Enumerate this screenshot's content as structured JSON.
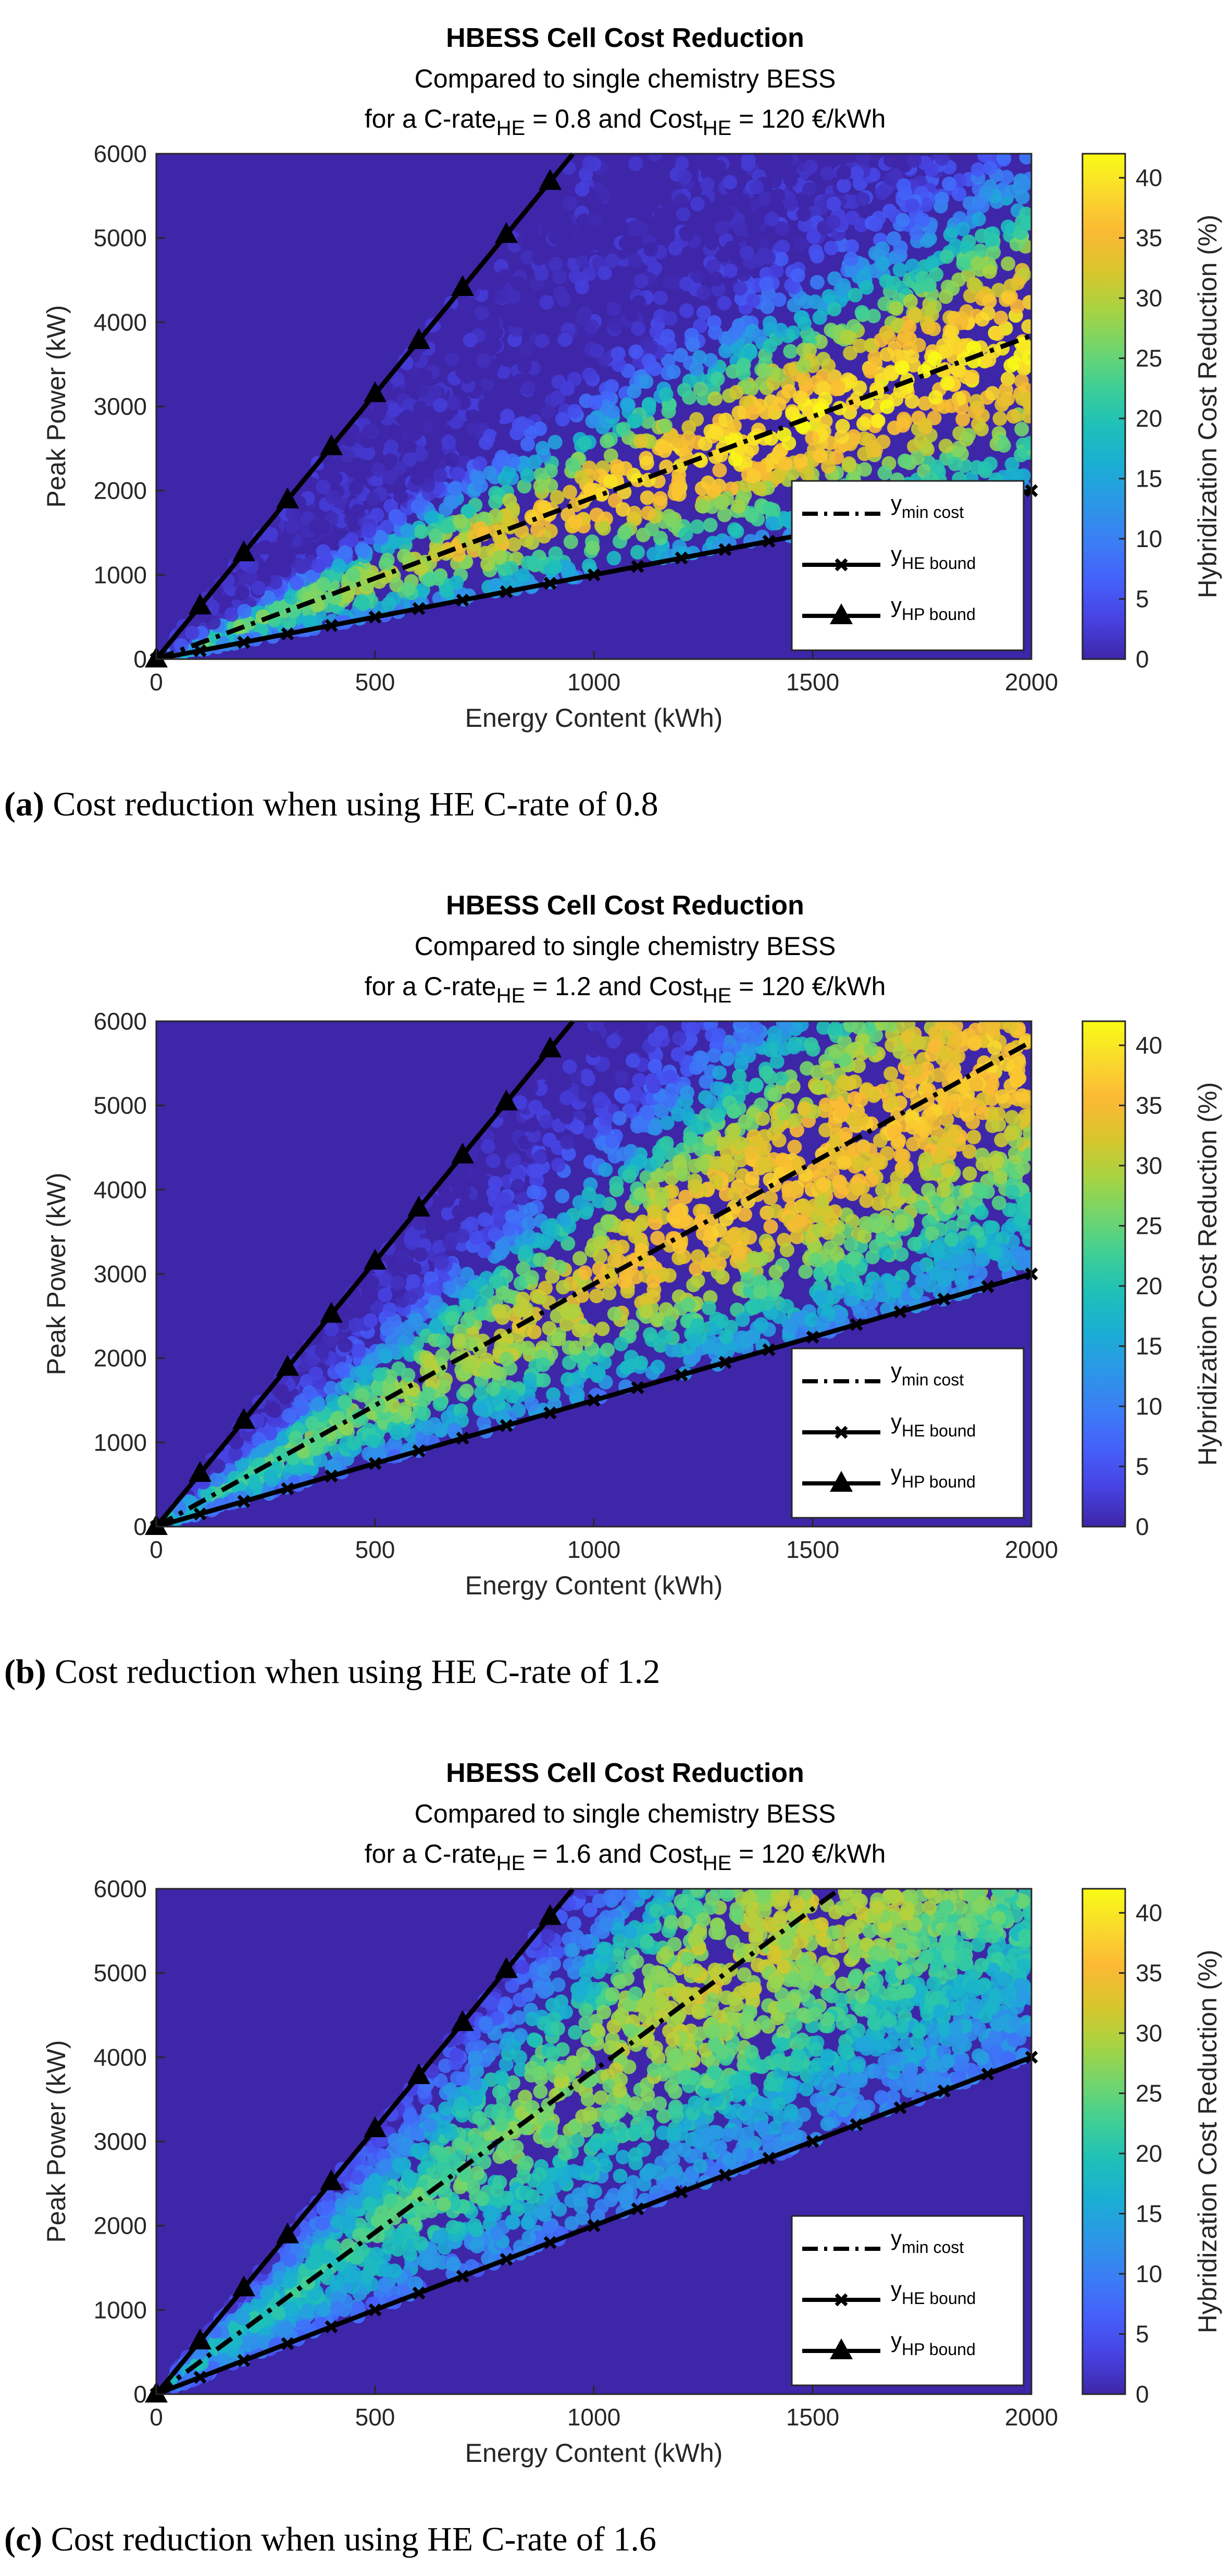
{
  "figure": {
    "colorbar_label": "Hybridization Cost Reduction (%)",
    "colorbar_ticks": [
      0,
      5,
      10,
      15,
      20,
      25,
      30,
      35,
      40
    ],
    "colorbar_range": [
      0,
      42
    ],
    "colors": {
      "background_low": "#3e26a8",
      "line": "#000000",
      "colormap": [
        "#3e26a8",
        "#4742e2",
        "#4560fa",
        "#3b7df5",
        "#2c97e6",
        "#1aaed3",
        "#1ec0b9",
        "#3ecf96",
        "#72d56d",
        "#a8d342",
        "#d9c52c",
        "#fbb934",
        "#f9da2c",
        "#f9fb15"
      ]
    }
  },
  "chart_data": [
    {
      "type": "scatter",
      "panel": "a",
      "title": "HBESS Cell Cost Reduction",
      "subtitle": "Compared to single chemistry BESS",
      "condition_prefix": "for a C-rate",
      "condition_mid": " = 0.8 and Cost",
      "condition_suffix": " = 120 €/kWh",
      "subscript": "HE",
      "c_rate_he": 0.8,
      "xlabel": "Energy Content (kWh)",
      "ylabel": "Peak Power (kW)",
      "xlim": [
        0,
        2000
      ],
      "ylim": [
        0,
        6000
      ],
      "xticks": [
        0,
        500,
        1000,
        1500,
        2000
      ],
      "yticks": [
        0,
        1000,
        2000,
        3000,
        4000,
        5000,
        6000
      ],
      "series": [
        {
          "name": "min cost",
          "style": "dash-dot",
          "marker": "none",
          "slope": 1.92,
          "x_end": 2000
        },
        {
          "name": "HE bound",
          "style": "solid",
          "marker": "x",
          "slope": 1.0,
          "x_end": 2000
        },
        {
          "name": "HP bound",
          "style": "solid",
          "marker": "triangle",
          "slope": 6.3,
          "x_end": 952
        }
      ],
      "legend": [
        {
          "label": "y",
          "sub": "min cost"
        },
        {
          "label": "y",
          "sub": "HE bound"
        },
        {
          "label": "y",
          "sub": "HP bound"
        }
      ],
      "legend_position": "bottom-right",
      "peak_reduction": 40,
      "caption_letter": "(a)",
      "caption_text": " Cost reduction when using HE C-rate of 0.8"
    },
    {
      "type": "scatter",
      "panel": "b",
      "title": "HBESS Cell Cost Reduction",
      "subtitle": "Compared to single chemistry BESS",
      "condition_prefix": "for a C-rate",
      "condition_mid": " = 1.2 and Cost",
      "condition_suffix": " = 120 €/kWh",
      "subscript": "HE",
      "c_rate_he": 1.2,
      "xlabel": "Energy Content (kWh)",
      "ylabel": "Peak Power (kW)",
      "xlim": [
        0,
        2000
      ],
      "ylim": [
        0,
        6000
      ],
      "xticks": [
        0,
        500,
        1000,
        1500,
        2000
      ],
      "yticks": [
        0,
        1000,
        2000,
        3000,
        4000,
        5000,
        6000
      ],
      "series": [
        {
          "name": "min cost",
          "style": "dash-dot",
          "marker": "none",
          "slope": 2.88,
          "x_end": 2000
        },
        {
          "name": "HE bound",
          "style": "solid",
          "marker": "x",
          "slope": 1.5,
          "x_end": 2000
        },
        {
          "name": "HP bound",
          "style": "solid",
          "marker": "triangle",
          "slope": 6.3,
          "x_end": 952
        }
      ],
      "legend": [
        {
          "label": "y",
          "sub": "min cost"
        },
        {
          "label": "y",
          "sub": "HE bound"
        },
        {
          "label": "y",
          "sub": "HP bound"
        }
      ],
      "legend_position": "bottom-right",
      "peak_reduction": 36,
      "caption_letter": "(b)",
      "caption_text": " Cost reduction when using HE C-rate of 1.2"
    },
    {
      "type": "scatter",
      "panel": "c",
      "title": "HBESS Cell Cost Reduction",
      "subtitle": "Compared to single chemistry BESS",
      "condition_prefix": "for a C-rate",
      "condition_mid": " = 1.6 and Cost",
      "condition_suffix": " = 120 €/kWh",
      "subscript": "HE",
      "c_rate_he": 1.6,
      "xlabel": "Energy Content (kWh)",
      "ylabel": "Peak Power (kW)",
      "xlim": [
        0,
        2000
      ],
      "ylim": [
        0,
        6000
      ],
      "xticks": [
        0,
        500,
        1000,
        1500,
        2000
      ],
      "yticks": [
        0,
        1000,
        2000,
        3000,
        4000,
        5000,
        6000
      ],
      "series": [
        {
          "name": "min cost",
          "style": "dash-dot",
          "marker": "none",
          "slope": 3.84,
          "x_end": 1562
        },
        {
          "name": "HE bound",
          "style": "solid",
          "marker": "x",
          "slope": 2.0,
          "x_end": 2000
        },
        {
          "name": "HP bound",
          "style": "solid",
          "marker": "triangle",
          "slope": 6.3,
          "x_end": 952
        }
      ],
      "legend": [
        {
          "label": "y",
          "sub": "min cost"
        },
        {
          "label": "y",
          "sub": "HE bound"
        },
        {
          "label": "y",
          "sub": "HP bound"
        }
      ],
      "legend_position": "bottom-right",
      "peak_reduction": 30,
      "caption_letter": "(c)",
      "caption_text": " Cost reduction when using HE C-rate of 1.6"
    }
  ]
}
